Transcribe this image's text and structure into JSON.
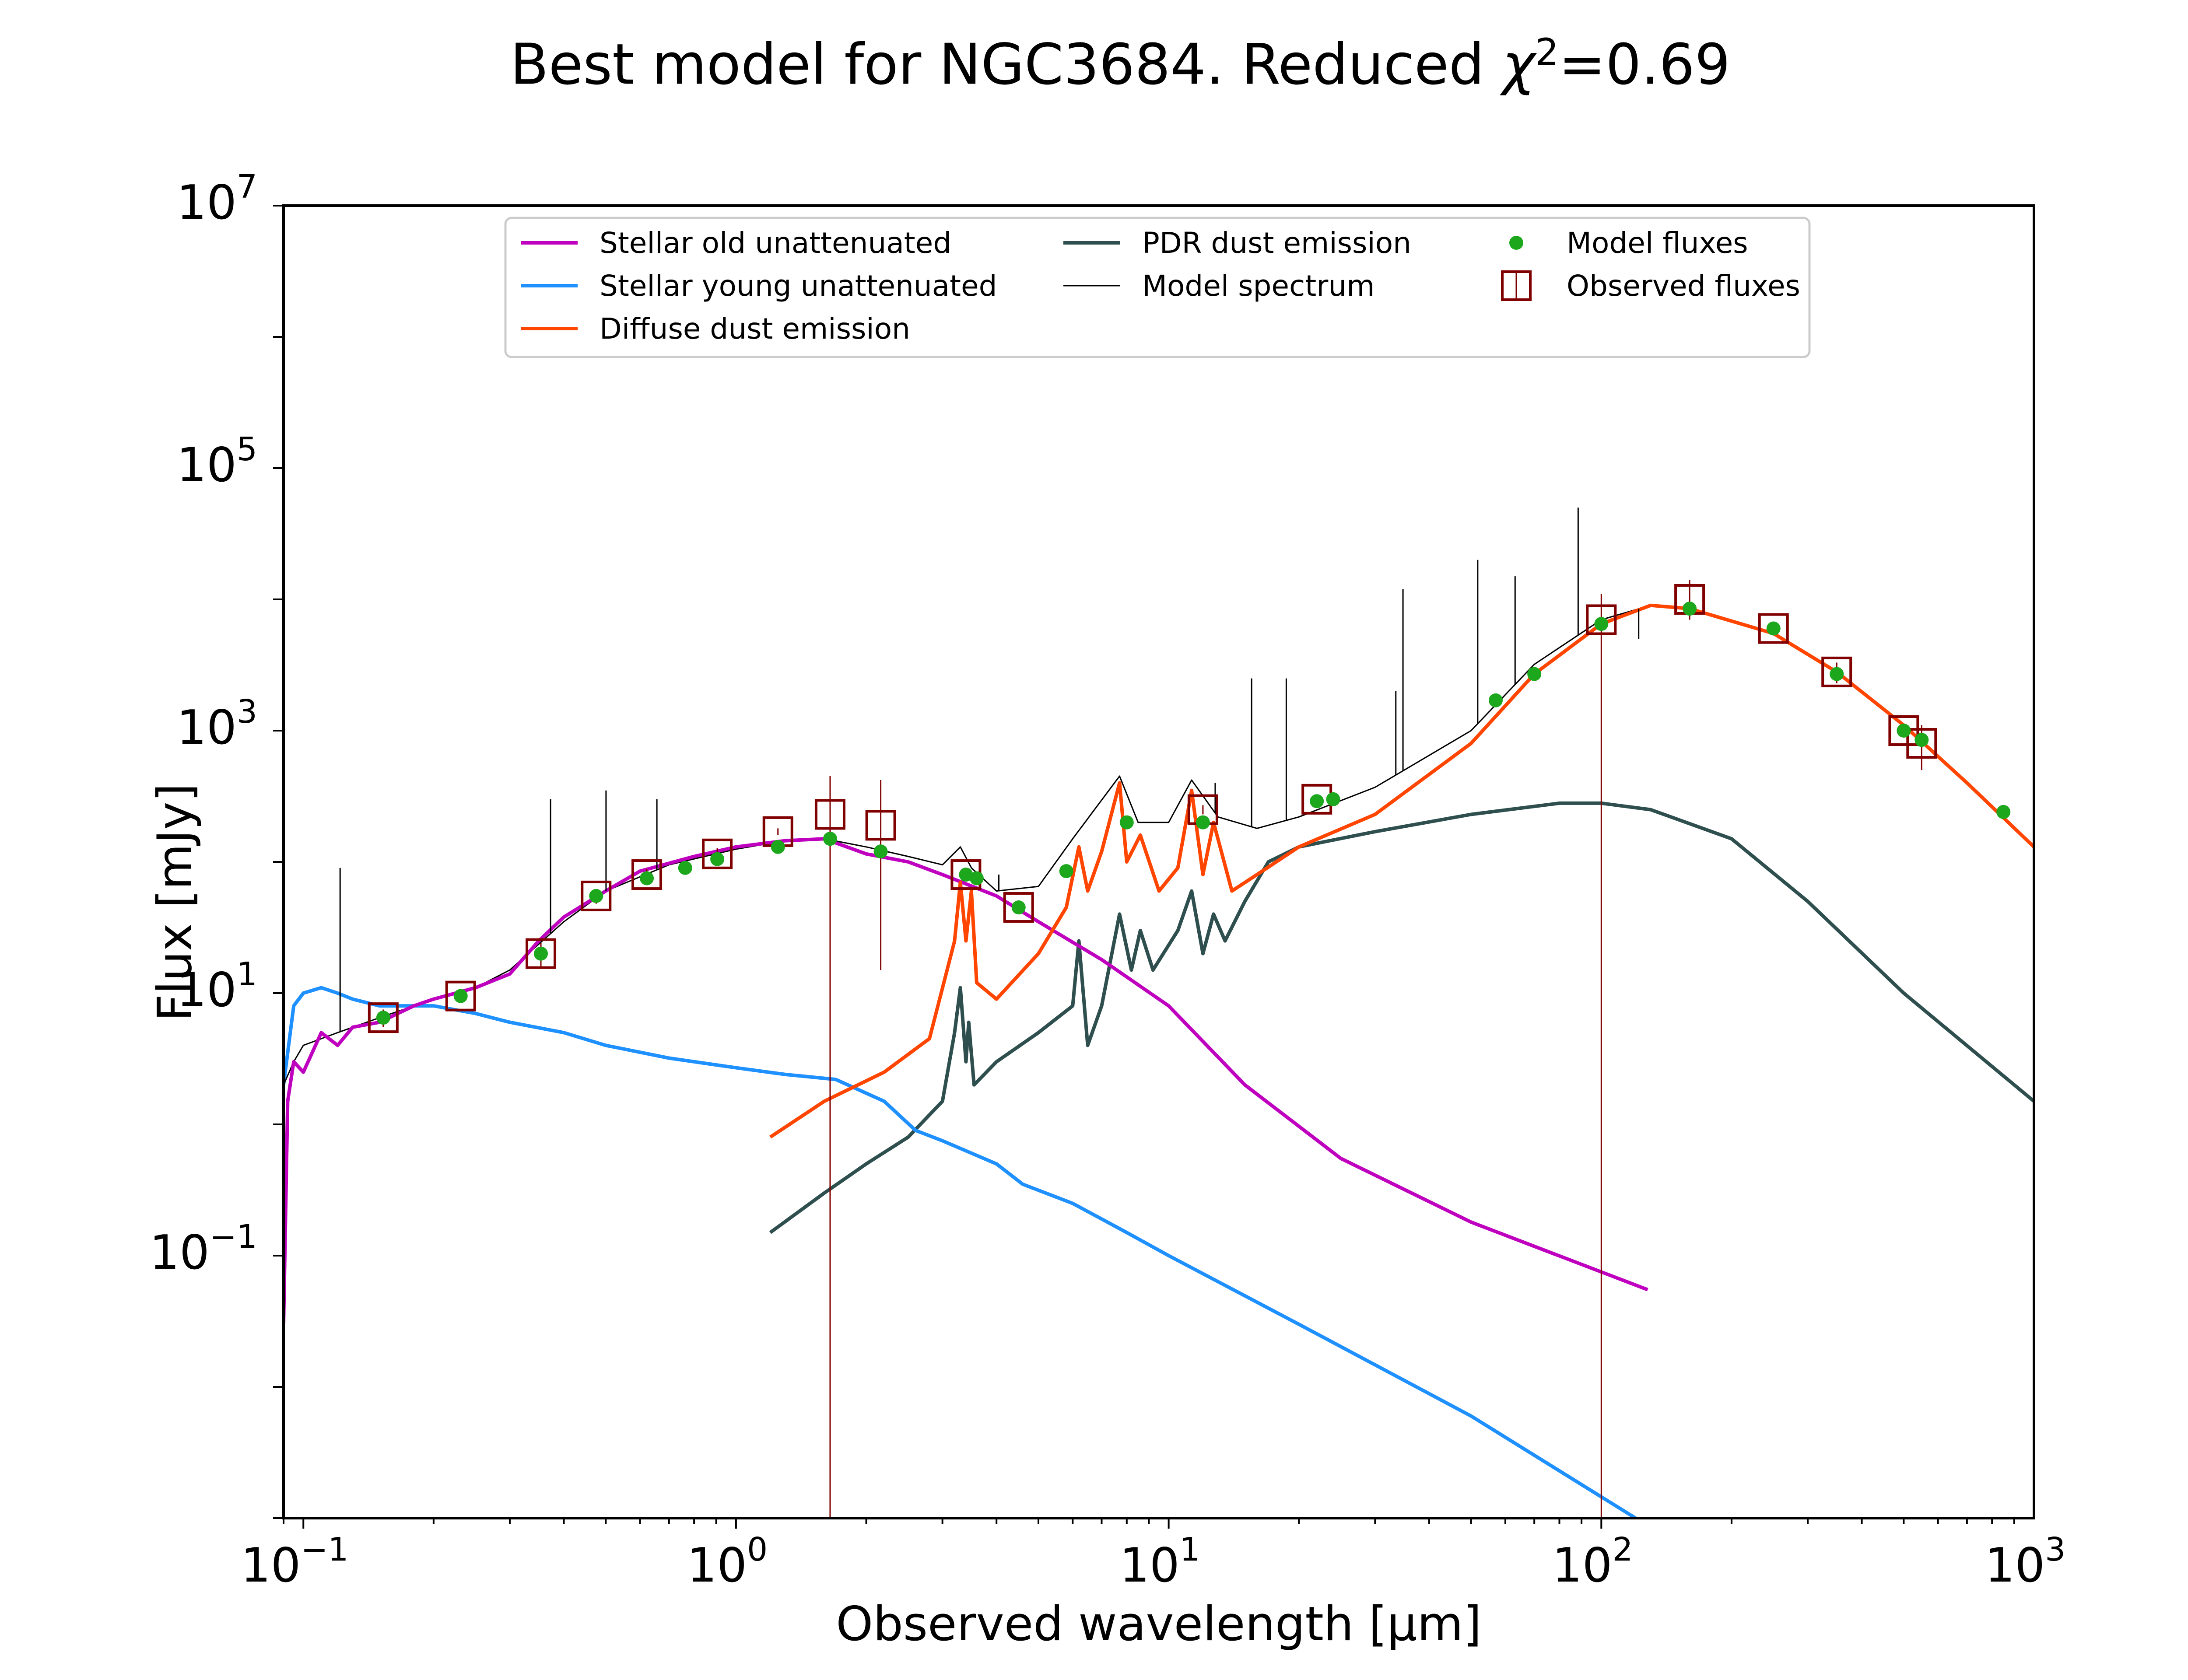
{
  "title_main": "Best model for NGC3684. Reduced ",
  "title_chi": "χ",
  "title_sup": "2",
  "title_value": "=0.69",
  "colors": {
    "stellar_old": "#bf00bf",
    "stellar_young": "#1e90ff",
    "diffuse_dust": "#ff4500",
    "pdr_dust": "#2f4f4f",
    "model_spectrum": "#000000",
    "model_fluxes": "#1ca71c",
    "observed": "#800000"
  },
  "chart_data": {
    "type": "line",
    "title": "Best model for NGC3684. Reduced χ²=0.69",
    "xlabel": "Observed wavelength [μm]",
    "ylabel": "Flux [mJy]",
    "xscale": "log",
    "yscale": "log",
    "xlim": [
      0.09,
      1000
    ],
    "ylim": [
      0.001,
      10000000
    ],
    "x_ticks": [
      {
        "base": "10",
        "exp": "−1",
        "value": 0.1
      },
      {
        "base": "10",
        "exp": "0",
        "value": 1
      },
      {
        "base": "10",
        "exp": "1",
        "value": 10
      },
      {
        "base": "10",
        "exp": "2",
        "value": 100
      },
      {
        "base": "10",
        "exp": "3",
        "value": 1000
      }
    ],
    "y_ticks": [
      {
        "base": "10",
        "exp": "−1",
        "value": 0.1
      },
      {
        "base": "10",
        "exp": "1",
        "value": 10
      },
      {
        "base": "10",
        "exp": "3",
        "value": 1000
      },
      {
        "base": "10",
        "exp": "5",
        "value": 100000
      },
      {
        "base": "10",
        "exp": "7",
        "value": 10000000
      }
    ],
    "legend_location": "upper center",
    "series": [
      {
        "name": "Stellar old unattenuated",
        "key": "stellar_old",
        "x": [
          0.09,
          0.092,
          0.095,
          0.1,
          0.11,
          0.12,
          0.13,
          0.15,
          0.18,
          0.2,
          0.25,
          0.3,
          0.35,
          0.4,
          0.5,
          0.6,
          0.8,
          1.0,
          1.3,
          1.6,
          2.0,
          2.5,
          3.0,
          4.0,
          5.0,
          7.0,
          10.0,
          15.0,
          25.0,
          50.0,
          128.0
        ],
        "y": [
          0.03,
          1.5,
          3.0,
          2.5,
          5.0,
          4.0,
          5.5,
          6.0,
          8.0,
          9.0,
          11.0,
          14.0,
          25.0,
          38.0,
          60.0,
          85.0,
          110.0,
          130.0,
          145.0,
          150.0,
          115.0,
          100.0,
          80.0,
          55.0,
          35.0,
          18.0,
          8.0,
          2.0,
          0.55,
          0.18,
          0.055
        ]
      },
      {
        "name": "Stellar young unattenuated",
        "key": "stellar_young",
        "x": [
          0.09,
          0.095,
          0.1,
          0.11,
          0.12,
          0.13,
          0.15,
          0.2,
          0.25,
          0.3,
          0.4,
          0.5,
          0.7,
          1.0,
          1.3,
          1.7,
          2.2,
          2.6,
          3.0,
          4.0,
          4.6,
          6.0,
          8.0,
          10.0,
          20.0,
          50.0,
          120.0
        ],
        "y": [
          2.0,
          8.0,
          10.0,
          11.0,
          10.0,
          9.0,
          8.0,
          8.0,
          7.0,
          6.0,
          5.0,
          4.0,
          3.2,
          2.7,
          2.4,
          2.2,
          1.5,
          0.9,
          0.75,
          0.5,
          0.35,
          0.25,
          0.15,
          0.1,
          0.03,
          0.006,
          0.001
        ]
      },
      {
        "name": "Diffuse dust emission",
        "key": "diffuse_dust",
        "x": [
          1.2,
          1.6,
          2.2,
          2.8,
          3.2,
          3.3,
          3.4,
          3.5,
          3.6,
          4.0,
          5.0,
          5.8,
          6.2,
          6.5,
          7.0,
          7.7,
          8.0,
          8.6,
          9.5,
          10.5,
          11.3,
          12.0,
          12.7,
          14.0,
          16.0,
          20.0,
          30.0,
          50.0,
          70.0,
          100.0,
          130.0,
          160.0,
          250.0,
          350.0,
          500.0,
          700.0,
          1000.0
        ],
        "y": [
          0.8,
          1.5,
          2.5,
          4.5,
          25.0,
          70.0,
          25.0,
          60.0,
          12.0,
          9.0,
          20.0,
          45.0,
          130.0,
          60.0,
          120.0,
          400.0,
          100.0,
          160.0,
          60.0,
          90.0,
          350.0,
          80.0,
          200.0,
          60.0,
          80.0,
          130.0,
          230.0,
          800.0,
          2700.0,
          6500.0,
          9000.0,
          8500.0,
          5500.0,
          2800.0,
          1100.0,
          400.0,
          130.0
        ]
      },
      {
        "name": "PDR dust emission",
        "key": "pdr_dust",
        "x": [
          1.2,
          1.6,
          2.0,
          2.5,
          3.0,
          3.2,
          3.3,
          3.4,
          3.45,
          3.55,
          4.0,
          5.0,
          6.0,
          6.2,
          6.5,
          7.0,
          7.7,
          8.2,
          8.6,
          9.2,
          10.5,
          11.3,
          12.0,
          12.7,
          13.5,
          15.0,
          17.0,
          20.0,
          30.0,
          50.0,
          80.0,
          100.0,
          130.0,
          200.0,
          300.0,
          500.0,
          1000.0
        ],
        "y": [
          0.15,
          0.3,
          0.5,
          0.8,
          1.5,
          5.0,
          11.0,
          3.0,
          6.0,
          2.0,
          3.0,
          5.0,
          8.0,
          25.0,
          4.0,
          8.0,
          40.0,
          15.0,
          30.0,
          15.0,
          30.0,
          60.0,
          20.0,
          40.0,
          25.0,
          50.0,
          100.0,
          130.0,
          170.0,
          230.0,
          280.0,
          280.0,
          250.0,
          150.0,
          50.0,
          10.0,
          1.5
        ]
      },
      {
        "name": "Model spectrum",
        "key": "model_spectrum",
        "x": [
          0.09,
          0.095,
          0.1,
          0.12,
          0.15,
          0.2,
          0.25,
          0.3,
          0.4,
          0.5,
          0.7,
          1.0,
          1.3,
          1.6,
          2.0,
          2.5,
          3.0,
          3.3,
          3.5,
          4.0,
          5.0,
          6.0,
          7.7,
          8.5,
          10.0,
          11.3,
          13.0,
          16.0,
          20.0,
          30.0,
          50.0,
          70.0,
          100.0,
          130.0,
          160.0,
          250.0,
          350.0,
          500.0,
          700.0,
          1000.0
        ],
        "y": [
          2.0,
          3.0,
          4.0,
          5.0,
          6.5,
          9.0,
          11.0,
          15.0,
          35.0,
          60.0,
          95.0,
          125.0,
          145.0,
          150.0,
          130.0,
          110.0,
          95.0,
          130.0,
          90.0,
          60.0,
          65.0,
          150.0,
          450.0,
          200.0,
          200.0,
          420.0,
          220.0,
          180.0,
          220.0,
          370.0,
          1000.0,
          3200.0,
          7000.0,
          9000.0,
          8500.0,
          5500.0,
          2800.0,
          1100.0,
          400.0,
          130.0
        ]
      },
      {
        "name": "Model fluxes",
        "key": "model_fluxes",
        "x": [
          0.153,
          0.231,
          0.354,
          0.475,
          0.622,
          0.763,
          0.905,
          1.25,
          1.65,
          2.16,
          3.4,
          3.6,
          4.5,
          5.8,
          8.0,
          12.0,
          22.0,
          24.0,
          57.0,
          70.0,
          100.0,
          160.0,
          250.0,
          350.0,
          500.0,
          550.0,
          850.0
        ],
        "y": [
          6.5,
          9.5,
          20.0,
          55.0,
          75.0,
          90.0,
          105.0,
          130.0,
          150.0,
          120.0,
          80.0,
          75.0,
          45.0,
          85.0,
          200.0,
          200.0,
          290.0,
          300.0,
          1700.0,
          2700.0,
          6500.0,
          8500.0,
          6000.0,
          2700.0,
          1000.0,
          850.0,
          240.0
        ]
      },
      {
        "name": "Observed fluxes",
        "key": "observed",
        "x": [
          0.153,
          0.231,
          0.354,
          0.475,
          0.622,
          0.905,
          1.25,
          1.65,
          2.16,
          3.4,
          4.5,
          12.0,
          22.0,
          100.0,
          160.0,
          250.0,
          350.0,
          500.0,
          550.0
        ],
        "y": [
          6.5,
          9.5,
          20.0,
          55.0,
          80.0,
          115.0,
          170.0,
          230.0,
          190.0,
          80.0,
          45.0,
          250.0,
          300.0,
          7000.0,
          10000.0,
          6000.0,
          2800.0,
          1000.0,
          800.0
        ],
        "yerr_low": [
          5.5,
          8.5,
          16.0,
          48.0,
          72.0,
          103.0,
          160.0,
          0.001,
          15.0,
          72.0,
          40.0,
          230.0,
          280.0,
          0.001,
          7000.0,
          5400.0,
          2300.0,
          900.0,
          500.0
        ],
        "yerr_high": [
          7.5,
          10.5,
          24.0,
          62.0,
          88.0,
          127.0,
          180.0,
          450.0,
          420.0,
          88.0,
          50.0,
          270.0,
          320.0,
          11000.0,
          14000.0,
          6600.0,
          3300.0,
          1100.0,
          1100.0
        ]
      }
    ],
    "emission_lines": [
      {
        "x": 0.1216,
        "y": 90.0
      },
      {
        "x": 0.3727,
        "y": 300.0
      },
      {
        "x": 0.5007,
        "y": 350.0
      },
      {
        "x": 0.6563,
        "y": 300.0
      },
      {
        "x": 4.05,
        "y": 80.0
      },
      {
        "x": 12.81,
        "y": 400.0
      },
      {
        "x": 15.55,
        "y": 2500.0
      },
      {
        "x": 18.7,
        "y": 2500.0
      },
      {
        "x": 33.5,
        "y": 2000.0
      },
      {
        "x": 34.8,
        "y": 12000.0
      },
      {
        "x": 51.8,
        "y": 20000.0
      },
      {
        "x": 63.2,
        "y": 15000.0
      },
      {
        "x": 88.4,
        "y": 50000.0
      },
      {
        "x": 122.0,
        "y": 5000.0
      }
    ]
  }
}
